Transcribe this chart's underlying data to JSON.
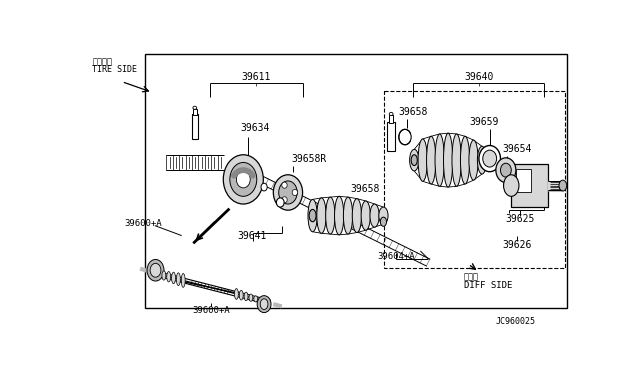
{
  "bg_color": "#ffffff",
  "line_color": "#000000",
  "text_color": "#000000",
  "fig_width": 6.4,
  "fig_height": 3.72,
  "dpi": 100,
  "title_code": "JC960025",
  "tire_side_jp": "タイヤ側",
  "tire_side_en": "TIRE SIDE",
  "diff_side_jp": "デフ側",
  "diff_side_en": "DIFF SIDE",
  "gray_light": "#d8d8d8",
  "gray_mid": "#b8b8b8",
  "gray_dark": "#888888"
}
